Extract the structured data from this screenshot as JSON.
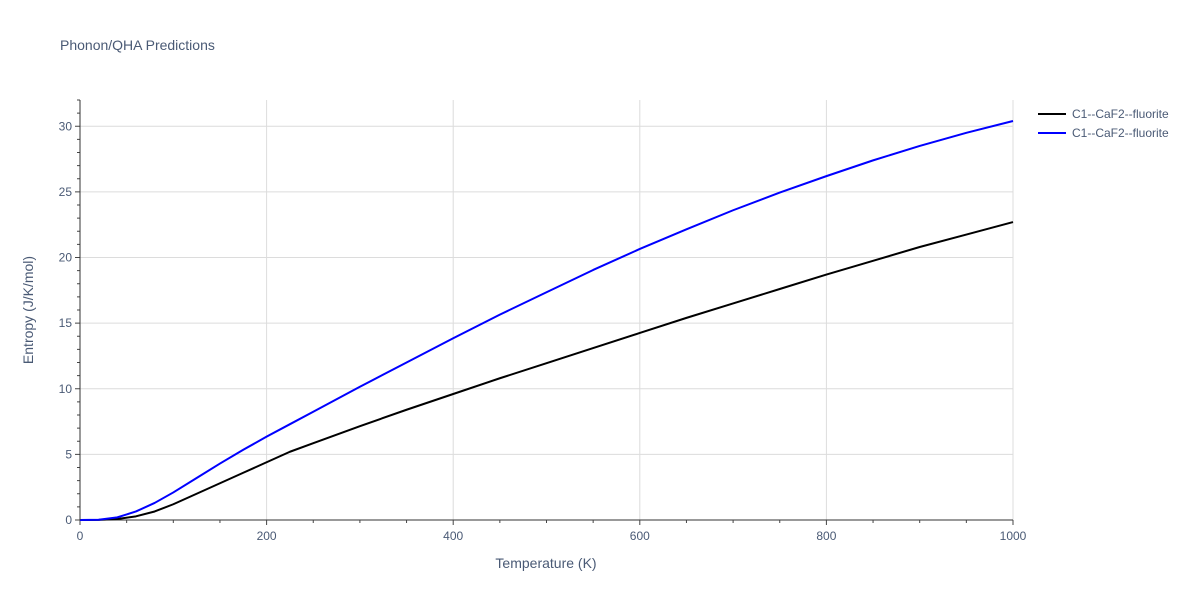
{
  "chart_data": {
    "type": "line",
    "title": "Phonon/QHA Predictions",
    "xlabel": "Temperature (K)",
    "ylabel": "Entropy (J/K/mol)",
    "xlim": [
      0,
      1000
    ],
    "ylim": [
      0,
      32
    ],
    "x_ticks": [
      "0",
      "200",
      "400",
      "600",
      "800",
      "1000"
    ],
    "y_ticks": [
      "0",
      "5",
      "10",
      "15",
      "20",
      "25",
      "30"
    ],
    "grid": true,
    "legend_position": "top-right",
    "series": [
      {
        "name": "C1--CaF2--fluorite",
        "color": "#000000",
        "x": [
          0,
          20,
          40,
          60,
          80,
          100,
          125,
          150,
          175,
          200,
          225,
          250,
          300,
          350,
          400,
          450,
          500,
          550,
          600,
          650,
          700,
          750,
          800,
          850,
          900,
          950,
          1000
        ],
        "y": [
          0,
          0.01,
          0.08,
          0.28,
          0.65,
          1.2,
          2.0,
          2.8,
          3.6,
          4.4,
          5.2,
          5.85,
          7.15,
          8.4,
          9.6,
          10.8,
          11.95,
          13.1,
          14.25,
          15.4,
          16.5,
          17.6,
          18.7,
          19.75,
          20.8,
          21.75,
          22.7
        ]
      },
      {
        "name": "C1--CaF2--fluorite",
        "color": "#0000ff",
        "x": [
          0,
          20,
          40,
          60,
          80,
          100,
          125,
          150,
          175,
          200,
          225,
          250,
          300,
          350,
          400,
          450,
          500,
          550,
          600,
          650,
          700,
          750,
          800,
          850,
          900,
          950,
          1000
        ],
        "y": [
          0,
          0.02,
          0.2,
          0.65,
          1.3,
          2.1,
          3.2,
          4.3,
          5.35,
          6.35,
          7.3,
          8.25,
          10.15,
          12.0,
          13.85,
          15.65,
          17.35,
          19.05,
          20.65,
          22.15,
          23.6,
          24.95,
          26.2,
          27.4,
          28.5,
          29.5,
          30.4
        ]
      }
    ]
  }
}
